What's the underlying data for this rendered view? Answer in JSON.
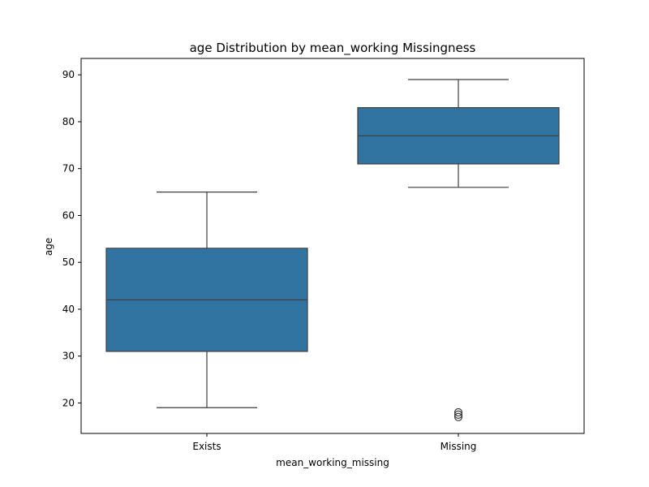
{
  "chart_data": {
    "type": "box",
    "title": "age Distribution by mean_working Missingness",
    "xlabel": "mean_working_missing",
    "ylabel": "age",
    "categories": [
      "Exists",
      "Missing"
    ],
    "ylim": [
      13.5,
      93.5
    ],
    "yticks": [
      20,
      30,
      40,
      50,
      60,
      70,
      80,
      90
    ],
    "grid": false,
    "box_color": "#3274a1",
    "line_color": "#3d3d3d",
    "boxes": [
      {
        "category": "Exists",
        "whisker_low": 19,
        "q1": 31,
        "median": 42,
        "q3": 53,
        "whisker_high": 65,
        "outliers": []
      },
      {
        "category": "Missing",
        "whisker_low": 66,
        "q1": 71,
        "median": 77,
        "q3": 83,
        "whisker_high": 89,
        "outliers": [
          17,
          17.5,
          18
        ]
      }
    ]
  }
}
